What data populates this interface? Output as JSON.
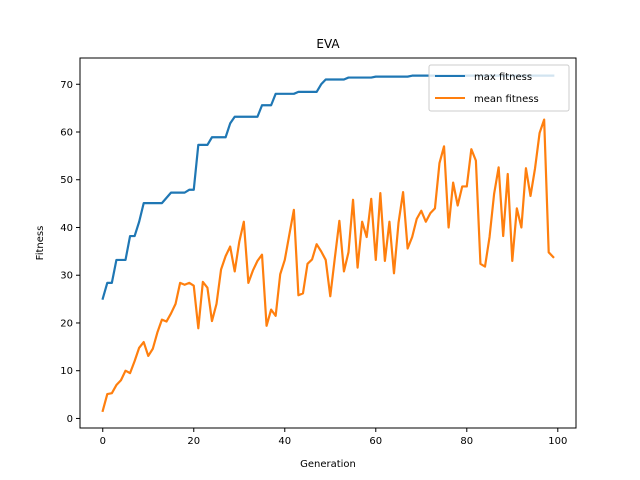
{
  "chart_data": {
    "type": "line",
    "title": "EVA",
    "xlabel": "Generation",
    "ylabel": "Fitness",
    "xlim": [
      -5,
      104
    ],
    "ylim": [
      -2,
      75.5
    ],
    "xticks": [
      0,
      20,
      40,
      60,
      80,
      100
    ],
    "yticks": [
      0,
      10,
      20,
      30,
      40,
      50,
      60,
      70
    ],
    "grid": false,
    "legend_position": "top-right",
    "series": [
      {
        "name": "max fitness",
        "color": "#1f77b4",
        "values": [
          25.1,
          28.4,
          28.4,
          33.2,
          33.2,
          33.2,
          38.2,
          38.2,
          41.2,
          45.1,
          45.1,
          45.1,
          45.1,
          45.1,
          46.2,
          47.3,
          47.3,
          47.3,
          47.3,
          47.9,
          47.9,
          57.3,
          57.3,
          57.3,
          58.9,
          58.9,
          58.9,
          58.9,
          61.8,
          63.2,
          63.2,
          63.2,
          63.2,
          63.2,
          63.2,
          65.6,
          65.6,
          65.6,
          68.0,
          68.0,
          68.0,
          68.0,
          68.0,
          68.4,
          68.4,
          68.4,
          68.4,
          68.4,
          70.0,
          71.0,
          71.0,
          71.0,
          71.0,
          71.0,
          71.4,
          71.4,
          71.4,
          71.4,
          71.4,
          71.4,
          71.6,
          71.6,
          71.6,
          71.6,
          71.6,
          71.6,
          71.6,
          71.6,
          71.8,
          71.8,
          71.8,
          71.8,
          71.8,
          71.8,
          71.8,
          71.8,
          71.8,
          71.8,
          71.8,
          71.8,
          71.8,
          71.8,
          71.8,
          71.8,
          71.8,
          71.8,
          71.8,
          71.8,
          71.8,
          71.8,
          71.8,
          71.8,
          71.8,
          71.8,
          71.8,
          71.8,
          71.8,
          71.8,
          71.8,
          71.8
        ]
      },
      {
        "name": "mean fitness",
        "color": "#ff7f0e",
        "values": [
          1.6,
          5.1,
          5.3,
          7.0,
          8.0,
          10.0,
          9.5,
          12.0,
          14.8,
          16.0,
          13.1,
          14.6,
          18.0,
          20.7,
          20.3,
          22.0,
          24.0,
          28.4,
          28.0,
          28.4,
          27.8,
          18.9,
          28.6,
          27.4,
          20.4,
          24.0,
          31.2,
          34.0,
          36.0,
          30.8,
          37.0,
          41.2,
          28.4,
          31.0,
          33.0,
          34.3,
          19.4,
          22.8,
          21.5,
          30.2,
          33.2,
          38.5,
          43.7,
          25.8,
          26.2,
          32.4,
          33.3,
          36.5,
          35.0,
          33.2,
          25.6,
          33.6,
          41.4,
          30.8,
          34.8,
          45.8,
          31.6,
          41.2,
          38.0,
          46.0,
          33.2,
          47.2,
          33.0,
          41.2,
          30.4,
          41.0,
          47.4,
          35.6,
          38.0,
          41.8,
          43.5,
          41.2,
          43.0,
          44.0,
          53.5,
          57.0,
          40.0,
          49.4,
          44.6,
          48.6,
          48.6,
          56.4,
          54.0,
          32.4,
          31.8,
          38.0,
          47.0,
          52.6,
          38.2,
          51.2,
          33.0,
          44.0,
          40.0,
          52.4,
          46.6,
          52.4,
          59.8,
          62.6,
          34.8,
          33.8
        ]
      }
    ]
  }
}
